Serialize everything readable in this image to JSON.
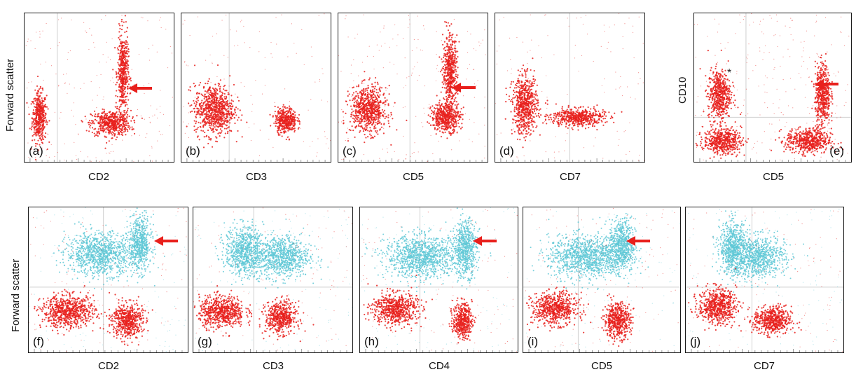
{
  "chart_data": [
    {
      "panel": "a",
      "type": "scatter",
      "label": "(a)",
      "xlabel": "CD2",
      "ylabel": "Forward scatter",
      "xscale": "log",
      "arrow": true,
      "gates": {
        "vertical": 0.22
      },
      "series": [
        {
          "name": "CD2-negative cluster",
          "color": "#e8201c",
          "center": [
            0.1,
            0.3
          ],
          "spread": [
            0.04,
            0.14
          ]
        },
        {
          "name": "CD2-positive cluster",
          "color": "#e8201c",
          "center": [
            0.58,
            0.26
          ],
          "spread": [
            0.11,
            0.07
          ]
        },
        {
          "name": "CD2-positive tail",
          "color": "#e8201c",
          "center": [
            0.66,
            0.6
          ],
          "spread": [
            0.03,
            0.22
          ]
        }
      ]
    },
    {
      "panel": "b",
      "type": "scatter",
      "label": "(b)",
      "xlabel": "CD3",
      "xscale": "log",
      "gates": {
        "vertical": 0.32
      },
      "series": [
        {
          "name": "CD3-negative cluster",
          "color": "#e8201c",
          "center": [
            0.22,
            0.35
          ],
          "spread": [
            0.11,
            0.14
          ]
        },
        {
          "name": "CD3-positive cluster",
          "color": "#e8201c",
          "center": [
            0.7,
            0.28
          ],
          "spread": [
            0.06,
            0.07
          ]
        }
      ]
    },
    {
      "panel": "c",
      "type": "scatter",
      "label": "(c)",
      "xlabel": "CD5",
      "xscale": "log",
      "arrow": true,
      "gates": {
        "vertical": 0.48
      },
      "series": [
        {
          "name": "CD5-negative cluster",
          "color": "#e8201c",
          "center": [
            0.2,
            0.35
          ],
          "spread": [
            0.1,
            0.13
          ]
        },
        {
          "name": "CD5-positive cluster",
          "color": "#e8201c",
          "center": [
            0.72,
            0.3
          ],
          "spread": [
            0.08,
            0.08
          ]
        },
        {
          "name": "CD5-positive tail",
          "color": "#e8201c",
          "center": [
            0.75,
            0.6
          ],
          "spread": [
            0.04,
            0.2
          ]
        }
      ]
    },
    {
      "panel": "d",
      "type": "scatter",
      "label": "(d)",
      "xlabel": "CD7",
      "xscale": "log",
      "gates": {
        "vertical": 0.5
      },
      "series": [
        {
          "name": "CD7 cluster",
          "color": "#e8201c",
          "center": [
            0.2,
            0.38
          ],
          "spread": [
            0.07,
            0.16
          ]
        },
        {
          "name": "CD7 band",
          "color": "#e8201c",
          "center": [
            0.55,
            0.3
          ],
          "spread": [
            0.15,
            0.05
          ]
        }
      ]
    },
    {
      "panel": "e",
      "type": "scatter",
      "label": "(e)",
      "xlabel": "CD5",
      "ylabel": "CD10",
      "xscale": "log",
      "yscale": "log",
      "arrow": true,
      "annotation": "*",
      "gates": {
        "vertical": 0.33,
        "horizontal": 0.3
      },
      "series": [
        {
          "name": "CD5-negative cluster",
          "color": "#e8201c",
          "center": [
            0.18,
            0.14
          ],
          "spread": [
            0.1,
            0.07
          ]
        },
        {
          "name": "CD5-positive cluster",
          "color": "#e8201c",
          "center": [
            0.73,
            0.14
          ],
          "spread": [
            0.12,
            0.07
          ]
        },
        {
          "name": "CD10-positive CD5-negative",
          "color": "#e8201c",
          "center": [
            0.16,
            0.45
          ],
          "spread": [
            0.06,
            0.14
          ]
        },
        {
          "name": "CD10-positive CD5-positive",
          "color": "#e8201c",
          "center": [
            0.82,
            0.45
          ],
          "spread": [
            0.04,
            0.17
          ]
        }
      ]
    },
    {
      "panel": "f",
      "type": "scatter",
      "label": "(f)",
      "xlabel": "CD2",
      "ylabel": "Forward scatter",
      "xscale": "log",
      "arrow": true,
      "gates": {
        "vertical": 0.47,
        "horizontal": 0.45
      },
      "series": [
        {
          "name": "large cells",
          "color": "#5fc8d6",
          "center": [
            0.7,
            0.75
          ],
          "spread": [
            0.06,
            0.16
          ]
        },
        {
          "name": "large cells scatter",
          "color": "#5fc8d6",
          "center": [
            0.45,
            0.68
          ],
          "spread": [
            0.18,
            0.12
          ]
        },
        {
          "name": "small cells negative",
          "color": "#e8201c",
          "center": [
            0.25,
            0.28
          ],
          "spread": [
            0.14,
            0.09
          ]
        },
        {
          "name": "small cells positive",
          "color": "#e8201c",
          "center": [
            0.62,
            0.22
          ],
          "spread": [
            0.08,
            0.1
          ]
        }
      ]
    },
    {
      "panel": "g",
      "type": "scatter",
      "label": "(g)",
      "xlabel": "CD3",
      "xscale": "log",
      "gates": {
        "vertical": 0.38,
        "horizontal": 0.45
      },
      "series": [
        {
          "name": "large cells",
          "color": "#5fc8d6",
          "center": [
            0.32,
            0.7
          ],
          "spread": [
            0.1,
            0.14
          ]
        },
        {
          "name": "large cells scatter",
          "color": "#5fc8d6",
          "center": [
            0.55,
            0.66
          ],
          "spread": [
            0.15,
            0.12
          ]
        },
        {
          "name": "small cells negative",
          "color": "#e8201c",
          "center": [
            0.18,
            0.28
          ],
          "spread": [
            0.12,
            0.09
          ]
        },
        {
          "name": "small cells positive",
          "color": "#e8201c",
          "center": [
            0.55,
            0.24
          ],
          "spread": [
            0.08,
            0.09
          ]
        }
      ]
    },
    {
      "panel": "h",
      "type": "scatter",
      "label": "(h)",
      "xlabel": "CD4",
      "xscale": "log",
      "arrow": true,
      "gates": {
        "vertical": 0.38,
        "horizontal": 0.45
      },
      "series": [
        {
          "name": "large cells",
          "color": "#5fc8d6",
          "center": [
            0.67,
            0.72
          ],
          "spread": [
            0.06,
            0.16
          ]
        },
        {
          "name": "large cells scatter",
          "color": "#5fc8d6",
          "center": [
            0.4,
            0.66
          ],
          "spread": [
            0.2,
            0.12
          ]
        },
        {
          "name": "small cells negative",
          "color": "#e8201c",
          "center": [
            0.22,
            0.3
          ],
          "spread": [
            0.12,
            0.09
          ]
        },
        {
          "name": "small cells positive",
          "color": "#e8201c",
          "center": [
            0.65,
            0.22
          ],
          "spread": [
            0.05,
            0.1
          ]
        }
      ]
    },
    {
      "panel": "i",
      "type": "scatter",
      "label": "(i)",
      "xlabel": "CD5",
      "xscale": "log",
      "arrow": true,
      "gates": {
        "vertical": 0.35,
        "horizontal": 0.45
      },
      "series": [
        {
          "name": "large cells",
          "color": "#5fc8d6",
          "center": [
            0.63,
            0.74
          ],
          "spread": [
            0.07,
            0.15
          ]
        },
        {
          "name": "large cells scatter",
          "color": "#5fc8d6",
          "center": [
            0.4,
            0.66
          ],
          "spread": [
            0.2,
            0.12
          ]
        },
        {
          "name": "small cells negative",
          "color": "#e8201c",
          "center": [
            0.2,
            0.3
          ],
          "spread": [
            0.12,
            0.09
          ]
        },
        {
          "name": "small cells positive",
          "color": "#e8201c",
          "center": [
            0.6,
            0.22
          ],
          "spread": [
            0.07,
            0.1
          ]
        }
      ]
    },
    {
      "panel": "j",
      "type": "scatter",
      "label": "(j)",
      "xlabel": "CD7",
      "xscale": "log",
      "gates": {
        "vertical": 0.42,
        "horizontal": 0.45
      },
      "series": [
        {
          "name": "large cells",
          "color": "#5fc8d6",
          "center": [
            0.3,
            0.72
          ],
          "spread": [
            0.07,
            0.15
          ]
        },
        {
          "name": "large cells scatter",
          "color": "#5fc8d6",
          "center": [
            0.45,
            0.66
          ],
          "spread": [
            0.15,
            0.12
          ]
        },
        {
          "name": "small cells negative",
          "color": "#e8201c",
          "center": [
            0.2,
            0.32
          ],
          "spread": [
            0.1,
            0.1
          ]
        },
        {
          "name": "small cells positive",
          "color": "#e8201c",
          "center": [
            0.55,
            0.22
          ],
          "spread": [
            0.1,
            0.08
          ]
        }
      ]
    }
  ],
  "texts": {
    "a_label": "(a)",
    "b_label": "(b)",
    "c_label": "(c)",
    "d_label": "(d)",
    "e_label": "(e)",
    "f_label": "(f)",
    "g_label": "(g)",
    "h_label": "(h)",
    "i_label": "(i)",
    "j_label": "(j)",
    "a_x": "CD2",
    "b_x": "CD3",
    "c_x": "CD5",
    "d_x": "CD7",
    "e_x": "CD5",
    "f_x": "CD2",
    "g_x": "CD3",
    "h_x": "CD4",
    "i_x": "CD5",
    "j_x": "CD7",
    "top_y": "Forward scatter",
    "e_y": "CD10",
    "bottom_y": "Forward scatter",
    "e_star": "*"
  },
  "colors": {
    "red": "#e8201c",
    "cyan": "#5fc8d6",
    "arrow": "#e8201c",
    "gate": "#cfcfcf"
  }
}
